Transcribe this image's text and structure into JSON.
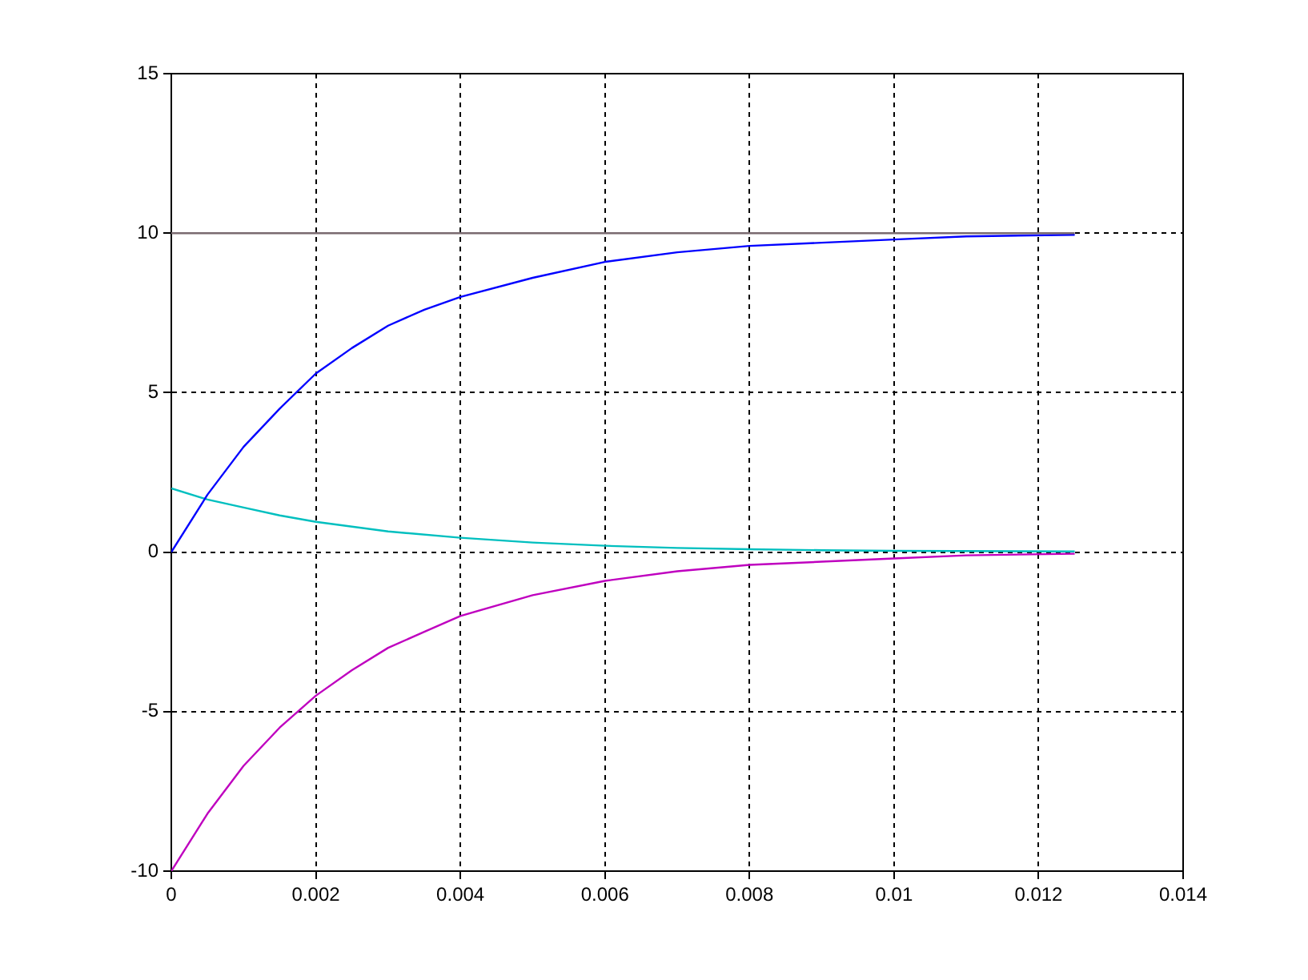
{
  "chart_data": {
    "type": "line",
    "xlim": [
      0,
      0.014
    ],
    "ylim": [
      -10,
      15
    ],
    "xticks": [
      0,
      0.002,
      0.004,
      0.006,
      0.008,
      0.01,
      0.012,
      0.014
    ],
    "yticks": [
      -10,
      -5,
      0,
      5,
      10,
      15
    ],
    "grid": true,
    "legend": false,
    "marker": "none",
    "line_style": "solid",
    "series": [
      {
        "color": "#7a6a70",
        "x": [
          0,
          0.0125
        ],
        "values": [
          10,
          10
        ]
      },
      {
        "color": "#0000ff",
        "x": [
          0,
          0.0005,
          0.001,
          0.0015,
          0.002,
          0.0025,
          0.003,
          0.0035,
          0.004,
          0.005,
          0.006,
          0.007,
          0.008,
          0.009,
          0.01,
          0.011,
          0.0125
        ],
        "values": [
          0,
          1.8,
          3.3,
          4.5,
          5.6,
          6.4,
          7.1,
          7.6,
          8.0,
          8.6,
          9.1,
          9.4,
          9.6,
          9.7,
          9.8,
          9.9,
          9.95
        ]
      },
      {
        "color": "#00bfbf",
        "x": [
          0,
          0.0005,
          0.001,
          0.0015,
          0.002,
          0.003,
          0.004,
          0.005,
          0.006,
          0.007,
          0.008,
          0.009,
          0.01,
          0.0125
        ],
        "values": [
          2.0,
          1.65,
          1.4,
          1.15,
          0.95,
          0.65,
          0.45,
          0.3,
          0.2,
          0.13,
          0.09,
          0.06,
          0.04,
          0.02
        ]
      },
      {
        "color": "#bf00bf",
        "x": [
          0,
          0.0005,
          0.001,
          0.0015,
          0.002,
          0.0025,
          0.003,
          0.0035,
          0.004,
          0.005,
          0.006,
          0.007,
          0.008,
          0.009,
          0.01,
          0.011,
          0.0125
        ],
        "values": [
          -10,
          -8.2,
          -6.7,
          -5.5,
          -4.5,
          -3.7,
          -3.0,
          -2.5,
          -2.0,
          -1.35,
          -0.9,
          -0.6,
          -0.4,
          -0.3,
          -0.2,
          -0.1,
          -0.05
        ]
      }
    ]
  }
}
